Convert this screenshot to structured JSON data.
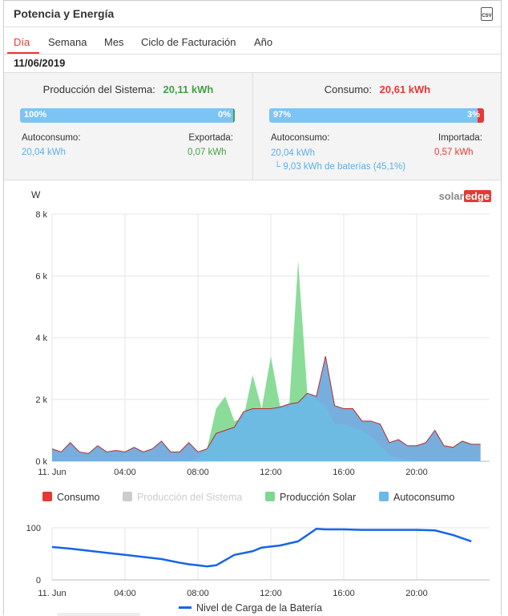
{
  "header": {
    "title": "Potencia y Energía",
    "csv_label": "CSV"
  },
  "tabs": [
    {
      "label": "Día",
      "active": true
    },
    {
      "label": "Semana"
    },
    {
      "label": "Mes"
    },
    {
      "label": "Ciclo de Facturación"
    },
    {
      "label": "Año"
    }
  ],
  "date": "11/06/2019",
  "production": {
    "title": "Producción del Sistema:",
    "value": "20,11 kWh",
    "bar_left": "100%",
    "bar_right": "0%",
    "self_label": "Autoconsumo:",
    "self_value": "20,04 kWh",
    "export_label": "Exportada:",
    "export_value": "0,07 kWh"
  },
  "consumption": {
    "title": "Consumo:",
    "value": "20,61 kWh",
    "bar_left": "97%",
    "bar_right": "3%",
    "self_label": "Autoconsumo:",
    "self_value": "20,04 kWh",
    "battery_note": "└ 9,03 kWh de baterías (45,1%)",
    "import_label": "Importada:",
    "import_value": "0,57 kWh"
  },
  "logo": {
    "solar": "solar",
    "edge": "edge"
  },
  "colors": {
    "consumo": "#e53935",
    "produccion_sistema": "#cccccc",
    "produccion_solar": "#7ed88e",
    "autoconsumo": "#6ab8ec",
    "battery_line": "#1565e8"
  },
  "chart_data": [
    {
      "type": "area",
      "ylabel": "W",
      "xlabel": "",
      "ylim": [
        0,
        8000
      ],
      "y_ticks": [
        "0 k",
        "2 k",
        "4 k",
        "6 k",
        "8 k"
      ],
      "x_ticks": [
        "11. Jun",
        "04:00",
        "08:00",
        "12:00",
        "16:00",
        "20:00"
      ],
      "x_hours": [
        0,
        0.5,
        1,
        1.5,
        2,
        2.5,
        3,
        3.5,
        4,
        4.5,
        5,
        5.5,
        6,
        6.5,
        7,
        7.5,
        8,
        8.5,
        9,
        9.5,
        10,
        10.5,
        11,
        11.5,
        12,
        12.5,
        13,
        13.5,
        14,
        14.5,
        15,
        15.5,
        16,
        16.5,
        17,
        17.5,
        18,
        18.5,
        19,
        19.5,
        20,
        20.5,
        21,
        21.5,
        22,
        22.5,
        23,
        23.5
      ],
      "series": [
        {
          "name": "Consumo",
          "values": [
            400,
            300,
            600,
            300,
            250,
            500,
            300,
            350,
            300,
            450,
            300,
            400,
            650,
            300,
            300,
            600,
            300,
            400,
            900,
            1000,
            1100,
            1600,
            1700,
            1700,
            1700,
            1750,
            1850,
            1900,
            2200,
            2100,
            3400,
            1800,
            1700,
            1700,
            1300,
            1300,
            1200,
            600,
            700,
            500,
            500,
            600,
            1000,
            500,
            450,
            650,
            550,
            550
          ]
        },
        {
          "name": "Producción Solar",
          "values": [
            0,
            0,
            0,
            0,
            0,
            0,
            0,
            0,
            0,
            0,
            0,
            0,
            0,
            0,
            0,
            0,
            100,
            400,
            1700,
            2100,
            1300,
            1400,
            2800,
            1700,
            3400,
            1800,
            1700,
            6500,
            2200,
            2000,
            1800,
            1200,
            1200,
            1100,
            1000,
            800,
            500,
            200,
            100,
            50,
            0,
            0,
            0,
            0,
            0,
            0,
            0,
            0
          ]
        },
        {
          "name": "Autoconsumo",
          "values": [
            400,
            300,
            600,
            300,
            250,
            500,
            300,
            350,
            300,
            450,
            300,
            400,
            650,
            300,
            300,
            600,
            300,
            400,
            900,
            1000,
            1100,
            1600,
            1700,
            1700,
            1700,
            1750,
            1850,
            1900,
            2200,
            2100,
            3400,
            1800,
            1700,
            1700,
            1300,
            1300,
            1200,
            600,
            700,
            500,
            500,
            600,
            1000,
            500,
            450,
            650,
            550,
            550
          ]
        }
      ],
      "legend": [
        "Consumo",
        "Producción del Sistema",
        "Producción Solar",
        "Autoconsumo"
      ]
    },
    {
      "type": "line",
      "ylim": [
        0,
        100
      ],
      "y_ticks": [
        "0",
        "100"
      ],
      "x_ticks": [
        "11. Jun",
        "04:00",
        "08:00",
        "12:00",
        "16:00",
        "20:00"
      ],
      "x_hours": [
        0,
        1,
        2,
        3,
        4,
        5,
        6,
        7,
        7.5,
        8,
        8.5,
        9,
        9.5,
        10,
        11,
        11.5,
        12,
        12.5,
        13,
        13.5,
        14,
        14.5,
        15,
        16,
        17,
        18,
        19,
        20,
        21,
        22,
        23
      ],
      "series": [
        {
          "name": "Nivel de Carga de la Batería",
          "values": [
            63,
            60,
            56,
            52,
            48,
            44,
            40,
            33,
            30,
            28,
            26,
            28,
            38,
            48,
            55,
            62,
            64,
            66,
            70,
            74,
            86,
            98,
            97,
            97,
            96,
            96,
            96,
            96,
            95,
            86,
            74
          ]
        }
      ]
    }
  ]
}
